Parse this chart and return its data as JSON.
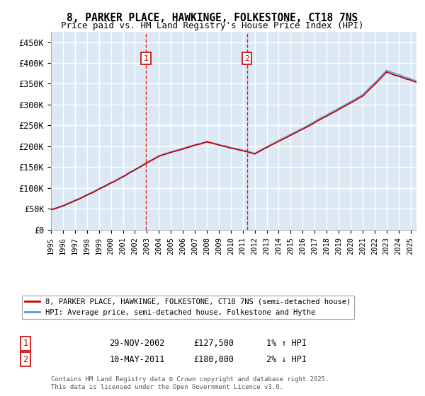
{
  "title_line1": "8, PARKER PLACE, HAWKINGE, FOLKESTONE, CT18 7NS",
  "title_line2": "Price paid vs. HM Land Registry's House Price Index (HPI)",
  "background_color": "#ffffff",
  "plot_bg_color": "#dce9f5",
  "grid_color": "#ffffff",
  "legend_line1": "8, PARKER PLACE, HAWKINGE, FOLKESTONE, CT18 7NS (semi-detached house)",
  "legend_line2": "HPI: Average price, semi-detached house, Folkestone and Hythe",
  "annotation1_label": "1",
  "annotation1_date": "29-NOV-2002",
  "annotation1_price": "£127,500",
  "annotation1_hpi": "1% ↑ HPI",
  "annotation2_label": "2",
  "annotation2_date": "10-MAY-2011",
  "annotation2_price": "£180,000",
  "annotation2_hpi": "2% ↓ HPI",
  "footnote": "Contains HM Land Registry data © Crown copyright and database right 2025.\nThis data is licensed under the Open Government Licence v3.0.",
  "sale1_x": 2002.91,
  "sale1_y": 127500,
  "sale2_x": 2011.36,
  "sale2_y": 180000,
  "xmin": 1995,
  "xmax": 2025.5,
  "ymin": 0,
  "ymax": 475000,
  "yticks": [
    0,
    50000,
    100000,
    150000,
    200000,
    250000,
    300000,
    350000,
    400000,
    450000
  ],
  "ytick_labels": [
    "£0",
    "£50K",
    "£100K",
    "£150K",
    "£200K",
    "£250K",
    "£300K",
    "£350K",
    "£400K",
    "£450K"
  ],
  "xticks": [
    1995,
    1996,
    1997,
    1998,
    1999,
    2000,
    2001,
    2002,
    2003,
    2004,
    2005,
    2006,
    2007,
    2008,
    2009,
    2010,
    2011,
    2012,
    2013,
    2014,
    2015,
    2016,
    2017,
    2018,
    2019,
    2020,
    2021,
    2022,
    2023,
    2024,
    2025
  ],
  "hpi_color": "#6699cc",
  "price_color": "#cc0000",
  "sale_marker_color": "#cc0000"
}
